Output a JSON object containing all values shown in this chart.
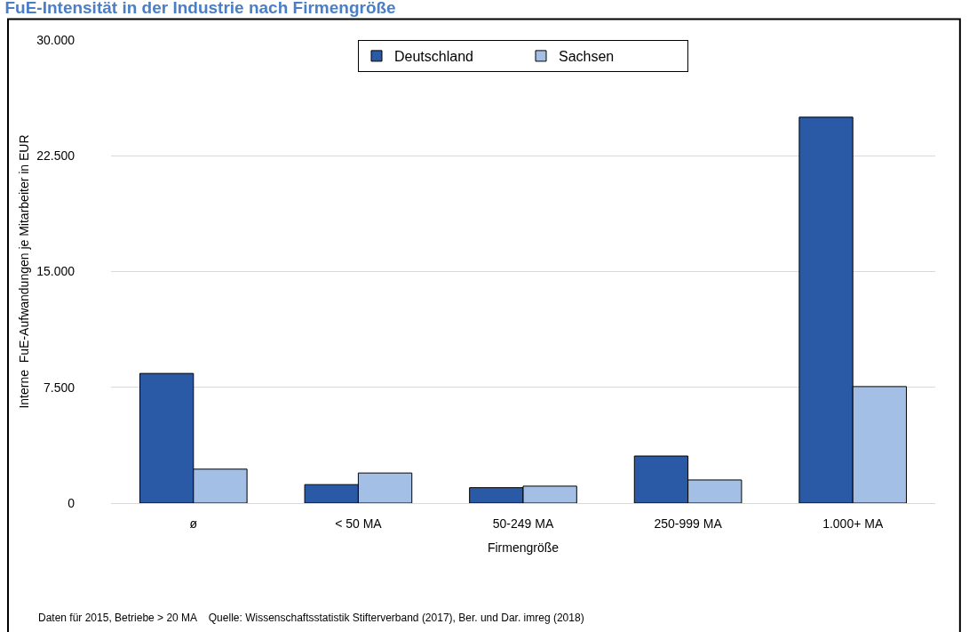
{
  "chart_data": {
    "type": "bar",
    "title": "FuE-Intensität in der Industrie nach Firmengröße",
    "xlabel": "Firmengröße",
    "ylabel": "Interne  FuE-Aufwandungen je Mitarbeiter in EUR",
    "categories": [
      "ø",
      "< 50 MA",
      "50-249 MA",
      "250-999 MA",
      "1.000+ MA"
    ],
    "series": [
      {
        "name": "Deutschland",
        "color": "#2a5aa6",
        "values": [
          8400,
          1200,
          1000,
          3050,
          25000
        ]
      },
      {
        "name": "Sachsen",
        "color": "#a3bfe6",
        "values": [
          2200,
          1950,
          1100,
          1500,
          7550
        ]
      }
    ],
    "ylim": [
      0,
      30000
    ],
    "yticks": [
      {
        "value": 0,
        "label": "0"
      },
      {
        "value": 7500,
        "label": "7.500"
      },
      {
        "value": 15000,
        "label": "15.000"
      },
      {
        "value": 22500,
        "label": "22.500"
      },
      {
        "value": 30000,
        "label": "30.000"
      }
    ],
    "grid": "y",
    "legend": "top",
    "annotations": [
      "Daten für 2015, Betriebe > 20 MA    Quelle: Wissenschaftsstatistik Stifterverband (2017), Ber. und Dar. imreg (2018)"
    ]
  }
}
